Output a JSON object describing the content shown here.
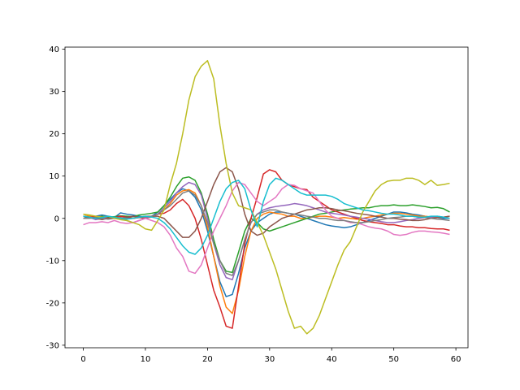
{
  "chart_data": {
    "type": "line",
    "x": [
      0,
      1,
      2,
      3,
      4,
      5,
      6,
      7,
      8,
      9,
      10,
      11,
      12,
      13,
      14,
      15,
      16,
      17,
      18,
      19,
      20,
      21,
      22,
      23,
      24,
      25,
      26,
      27,
      28,
      29,
      30,
      31,
      32,
      33,
      34,
      35,
      36,
      37,
      38,
      39,
      40,
      41,
      42,
      43,
      44,
      45,
      46,
      47,
      48,
      49,
      50,
      51,
      52,
      53,
      54,
      55,
      56,
      57,
      58,
      59
    ],
    "xlim": [
      -2.95,
      61.95
    ],
    "xticks": [
      0,
      10,
      20,
      30,
      40,
      50,
      60
    ],
    "ylim": [
      -30.6,
      40.5
    ],
    "yticks": [
      -30,
      -20,
      -10,
      0,
      10,
      20,
      30,
      40
    ],
    "grid": false,
    "series": [
      {
        "color": "#1f77b4",
        "values": [
          0.5,
          0.3,
          0.5,
          0.8,
          0.5,
          0.2,
          1.3,
          1,
          0.8,
          0.5,
          0.3,
          0.5,
          1.5,
          3,
          4.5,
          6,
          7,
          6.5,
          5,
          2,
          -3,
          -9,
          -15,
          -18.5,
          -18,
          -13,
          -7,
          -3,
          -1,
          0,
          1,
          1.5,
          1.5,
          1.2,
          1,
          0.5,
          0,
          -0.5,
          -1,
          -1.5,
          -1.8,
          -2,
          -2.2,
          -2,
          -1.5,
          -1,
          -0.5,
          0,
          0.5,
          1,
          1.5,
          1.5,
          1.3,
          1,
          0.8,
          0.5,
          0.3,
          0.2,
          0,
          0
        ]
      },
      {
        "color": "#ff7f0e",
        "values": [
          1,
          0.5,
          0.3,
          0,
          0.2,
          0.1,
          0,
          0.3,
          0.5,
          0.2,
          0,
          0.3,
          1,
          2,
          3.5,
          5.5,
          6.5,
          6.8,
          6,
          3,
          -2,
          -9,
          -16,
          -21,
          -22.5,
          -17,
          -9,
          -3,
          0,
          1,
          1.5,
          1.2,
          1,
          0.5,
          0.5,
          0,
          0,
          0.3,
          0.5,
          0.5,
          0.3,
          0,
          0.2,
          0,
          -0.2,
          0,
          0.3,
          0.5,
          0.8,
          1,
          1.2,
          1.2,
          1,
          0.8,
          0.5,
          0.5,
          0.3,
          0.2,
          0.3,
          0.5
        ]
      },
      {
        "color": "#2ca02c",
        "values": [
          0.5,
          0.3,
          0.2,
          0.5,
          0.3,
          0.4,
          0.6,
          0.5,
          0.4,
          0.8,
          1,
          1.2,
          1.5,
          3,
          5,
          7.5,
          9.5,
          9.8,
          9,
          6,
          1,
          -5,
          -10,
          -12.5,
          -12.8,
          -8,
          -3,
          0,
          -1,
          -2.5,
          -3,
          -2.5,
          -2,
          -1.5,
          -1,
          -0.5,
          0,
          0.5,
          1,
          1.2,
          1.5,
          1.8,
          2,
          2.2,
          2.3,
          2.5,
          2.5,
          2.8,
          3,
          3,
          3.2,
          3,
          3,
          3.2,
          3,
          2.8,
          2.5,
          2.6,
          2.3,
          1.5
        ]
      },
      {
        "color": "#d62728",
        "values": [
          0,
          0.2,
          0.5,
          0.3,
          0,
          0.2,
          0.5,
          0.3,
          0,
          0.2,
          0,
          0.5,
          1,
          1.2,
          2,
          3.5,
          4.5,
          3,
          0,
          -5,
          -11,
          -17,
          -21,
          -25.5,
          -26,
          -16,
          -6,
          0,
          5,
          10.5,
          11.5,
          11,
          9,
          8,
          7.5,
          7,
          6.8,
          5,
          4,
          3,
          2,
          1.5,
          1,
          0.5,
          0,
          -0.5,
          -0.8,
          -1,
          -1.2,
          -1.5,
          -1.5,
          -1.8,
          -2,
          -2,
          -2.2,
          -2.2,
          -2.4,
          -2.5,
          -2.5,
          -2.8
        ]
      },
      {
        "color": "#9467bd",
        "values": [
          0,
          0.2,
          -0.3,
          0,
          0.5,
          0.2,
          0,
          -0.5,
          -1,
          -0.5,
          0,
          0.5,
          1,
          2.5,
          4,
          6,
          7.5,
          8.5,
          8,
          5.5,
          0,
          -6,
          -11,
          -14,
          -14.5,
          -10,
          -5,
          -1,
          1,
          2,
          2.5,
          2.8,
          3,
          3.2,
          3.5,
          3.3,
          3,
          2.5,
          2,
          1.5,
          1.2,
          1,
          0.8,
          0.5,
          0.3,
          0,
          -0.2,
          -0.5,
          -0.8,
          -1,
          -1,
          -0.8,
          -0.5,
          -0.3,
          0,
          0.2,
          0.3,
          0.5,
          0.3,
          0
        ]
      },
      {
        "color": "#8c564b",
        "values": [
          0,
          0.3,
          0,
          -0.3,
          0,
          0.2,
          0,
          0.3,
          0.5,
          0.3,
          0.5,
          0.5,
          0.5,
          0,
          -1.5,
          -3,
          -4.5,
          -4.5,
          -3,
          0,
          4,
          8,
          11,
          12,
          11,
          7,
          1,
          -3,
          -4,
          -3.5,
          -2,
          -1,
          0,
          0.5,
          1,
          1.5,
          2,
          2.2,
          2.5,
          2.5,
          2.3,
          2,
          1.8,
          1.5,
          1.2,
          1,
          0.8,
          0.5,
          0.3,
          0,
          0,
          -0.2,
          -0.3,
          -0.5,
          -0.5,
          -0.3,
          0,
          0.2,
          0.3,
          0.5
        ]
      },
      {
        "color": "#e377c2",
        "values": [
          -1.5,
          -1,
          -1,
          -0.8,
          -1,
          -0.5,
          -1,
          -1.2,
          -1,
          -0.5,
          0,
          -0.5,
          -1,
          -2,
          -4,
          -7,
          -9,
          -12.5,
          -13,
          -11,
          -7,
          -3,
          0,
          3,
          6.5,
          8.5,
          8,
          6,
          4,
          3,
          4,
          5,
          7,
          8,
          7.8,
          7,
          6.5,
          6,
          4,
          2,
          0.5,
          0,
          -0.5,
          -1,
          -1,
          -1.5,
          -2,
          -2.3,
          -2.5,
          -3,
          -3.8,
          -4,
          -3.8,
          -3.3,
          -3,
          -3,
          -3.2,
          -3.3,
          -3.5,
          -3.8
        ]
      },
      {
        "color": "#7f7f7f",
        "values": [
          0,
          0,
          0.2,
          0,
          -0.2,
          0,
          0.2,
          0,
          0,
          0.2,
          0.3,
          0.5,
          1,
          2,
          3,
          4.5,
          6,
          6.5,
          5.5,
          3,
          -1,
          -6,
          -10,
          -13,
          -13.5,
          -10,
          -5,
          -1,
          1,
          1.5,
          2,
          2,
          1.5,
          1.2,
          1,
          0.8,
          0.5,
          0.3,
          0,
          0,
          -0.3,
          -0.5,
          -0.5,
          -0.8,
          -1,
          -1,
          -0.8,
          -0.5,
          -0.3,
          0,
          0.2,
          0.3,
          0.5,
          0.5,
          0.3,
          0.2,
          0,
          -0.2,
          -0.3,
          -0.5
        ]
      },
      {
        "color": "#bcbd22",
        "values": [
          1,
          0.8,
          0.5,
          0.3,
          0.5,
          0,
          -0.3,
          -0.5,
          -1,
          -1.5,
          -2.5,
          -2.8,
          -0.5,
          2,
          8,
          13,
          20,
          28,
          33.5,
          36,
          37.3,
          33,
          22,
          13,
          6,
          3,
          2.5,
          2,
          -1,
          -4,
          -8,
          -12,
          -17,
          -22,
          -26,
          -25.5,
          -27.3,
          -26,
          -23,
          -19,
          -15,
          -11,
          -7.5,
          -5.5,
          -2,
          1.5,
          4,
          6.5,
          8,
          8.8,
          9,
          9,
          9.5,
          9.5,
          9,
          8,
          9,
          7.8,
          8,
          8.3
        ]
      },
      {
        "color": "#17becf",
        "values": [
          0.5,
          0.3,
          0,
          0.2,
          0.5,
          0.3,
          0,
          -0.2,
          0,
          0.3,
          0.5,
          0.3,
          0,
          -1,
          -2.5,
          -4.5,
          -6.5,
          -8,
          -8.5,
          -7,
          -4,
          0,
          4,
          7,
          8.5,
          9,
          7,
          2,
          -2,
          4,
          8,
          9.5,
          9,
          8,
          7,
          6,
          5.5,
          5.5,
          5.5,
          5.5,
          5.2,
          4.5,
          3.5,
          3,
          2.5,
          2,
          1.8,
          1.5,
          1.2,
          1,
          1,
          0.8,
          0.5,
          0.5,
          0.3,
          0.3,
          0.5,
          0.5,
          0.3,
          0
        ]
      }
    ]
  }
}
